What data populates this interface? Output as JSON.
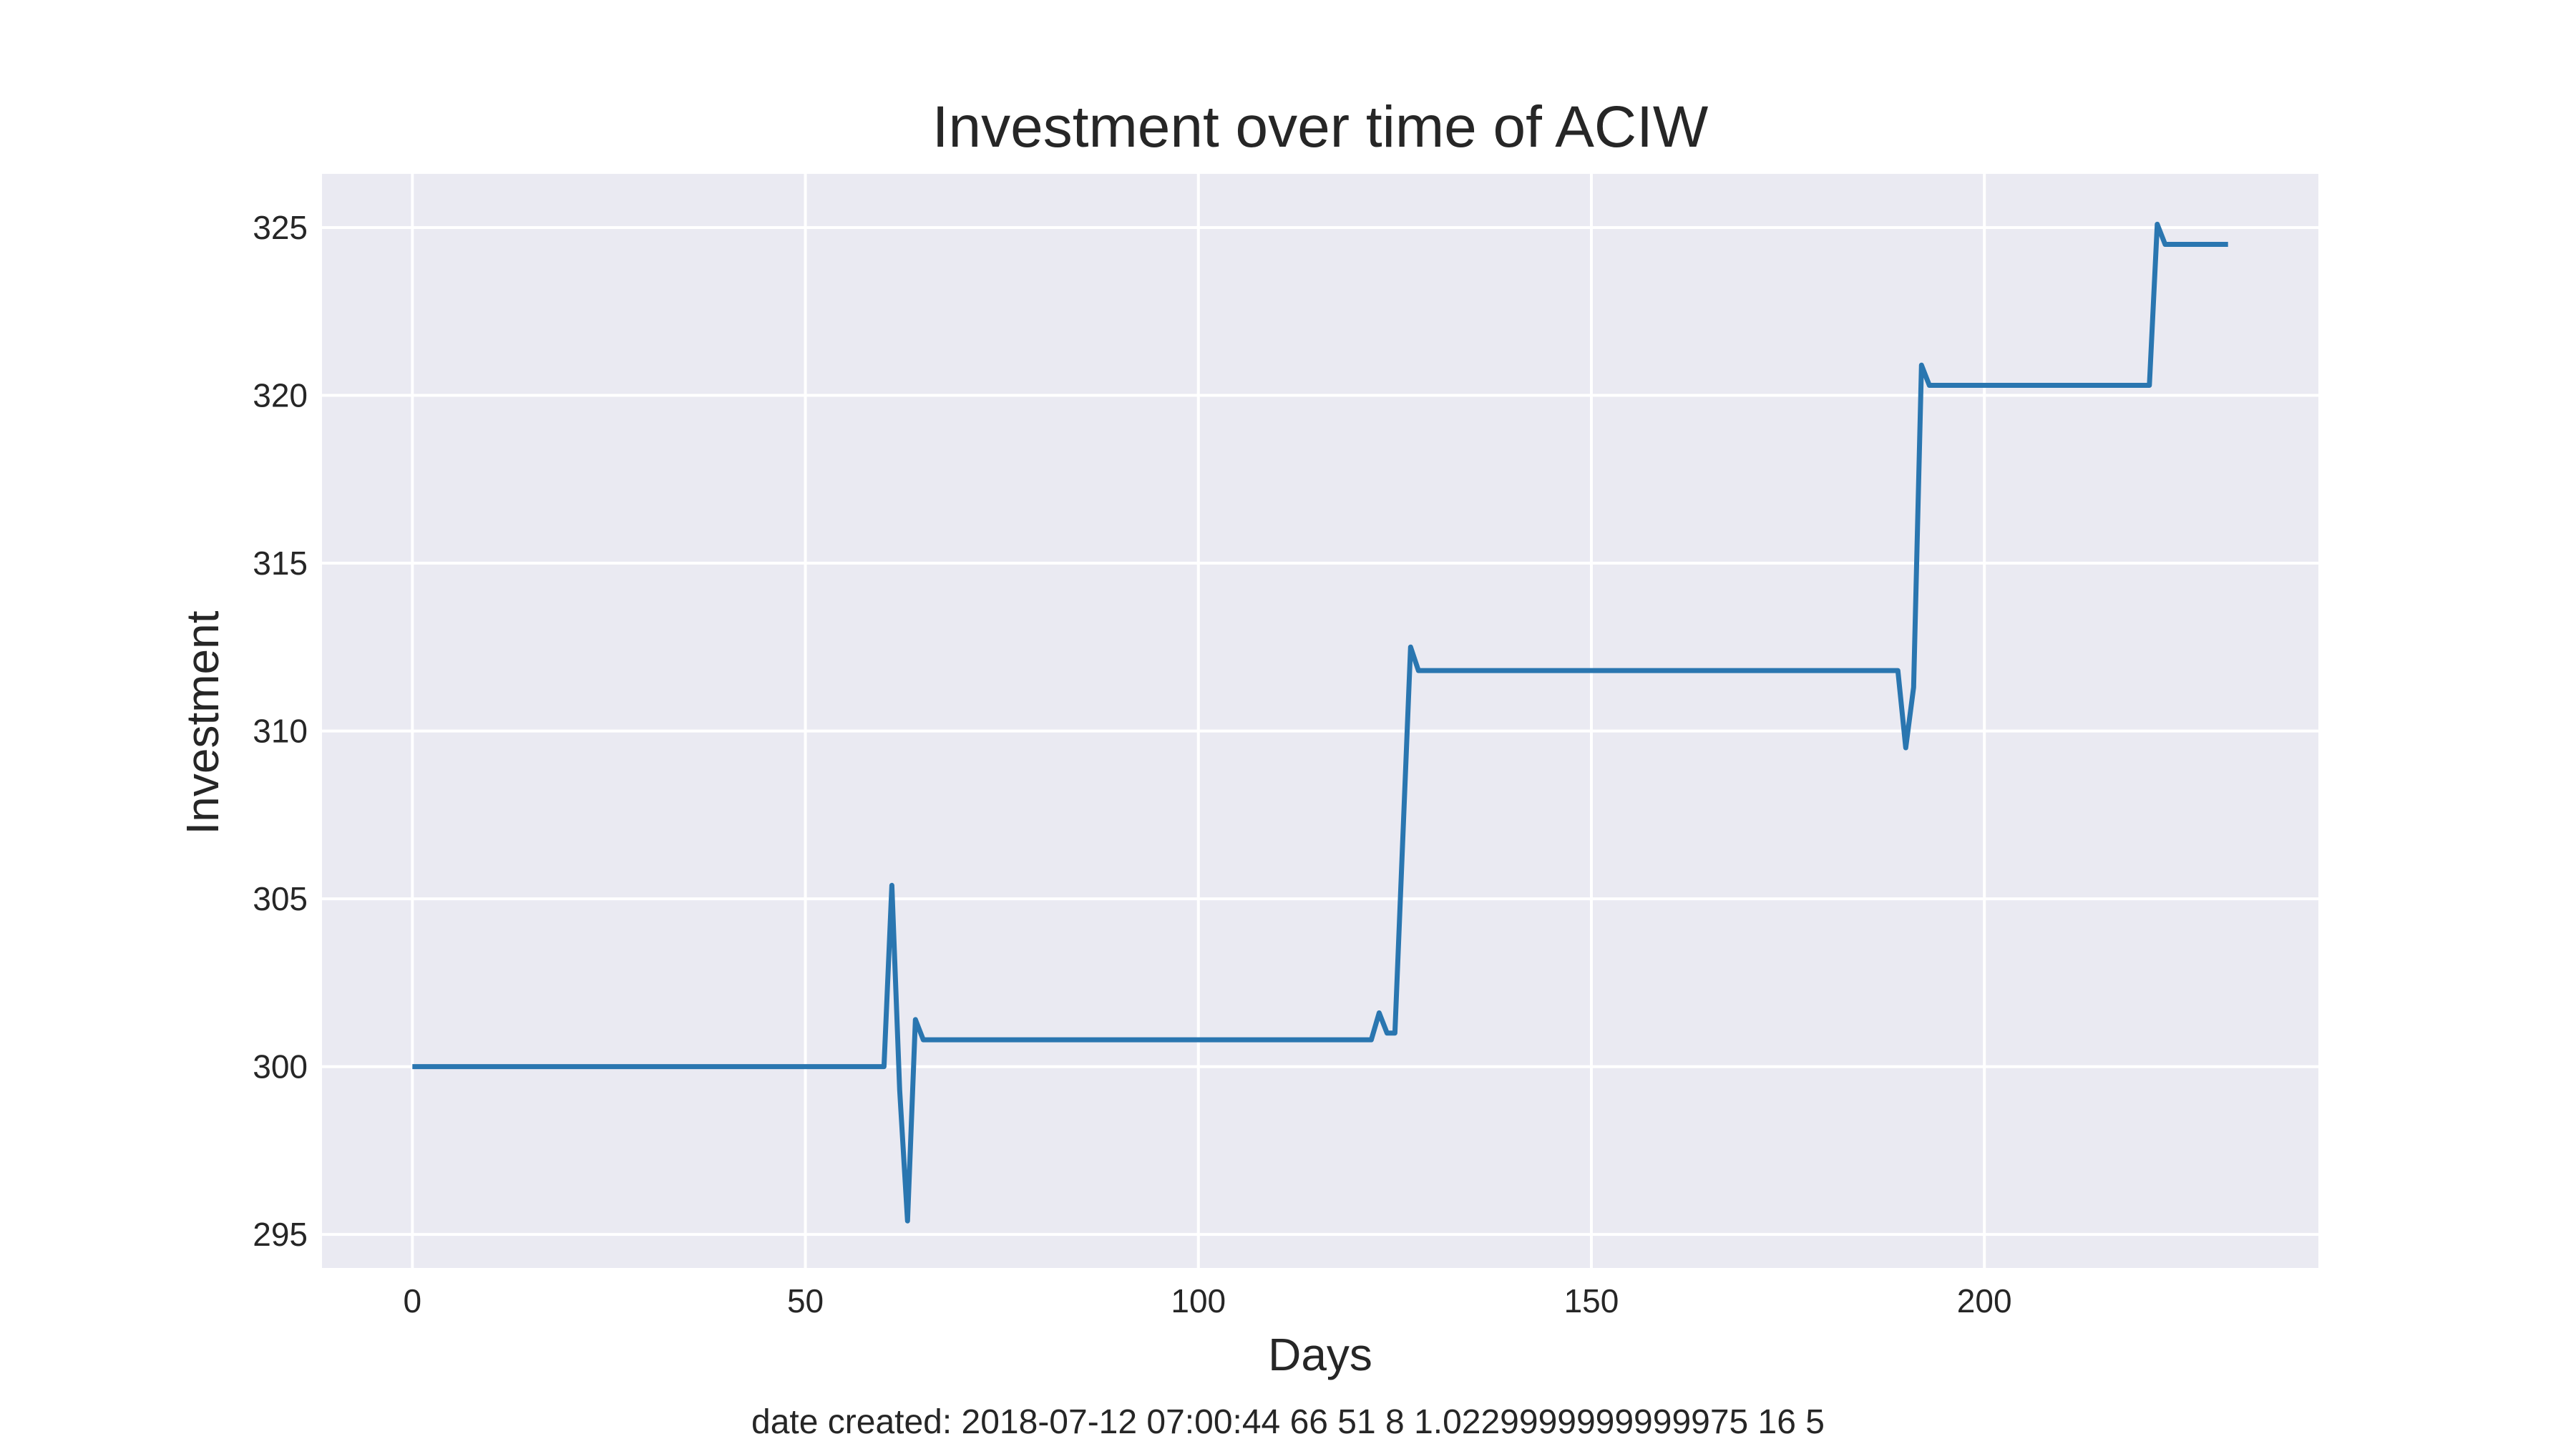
{
  "chart_data": {
    "type": "line",
    "title": "Investment over time of ACIW",
    "xlabel": "Days",
    "ylabel": "Investment",
    "caption": "date created: 2018-07-12 07:00:44 66 51 8 1.0229999999999975 16 5",
    "xlim": [
      -11.5,
      242.5
    ],
    "ylim": [
      294.0,
      326.6
    ],
    "x_ticks": [
      0,
      50,
      100,
      150,
      200
    ],
    "y_ticks": [
      295,
      300,
      305,
      310,
      315,
      320,
      325
    ],
    "grid": true,
    "legend": "none",
    "colors": {
      "plot_background": "#eaeaf2",
      "grid": "#ffffff",
      "line": "#2a76b0",
      "text": "#262626"
    },
    "series": [
      {
        "points": [
          [
            0,
            300.0
          ],
          [
            60,
            300.0
          ],
          [
            61,
            305.4
          ],
          [
            62,
            299.3
          ],
          [
            63,
            295.4
          ],
          [
            64,
            301.4
          ],
          [
            65,
            300.8
          ],
          [
            122,
            300.8
          ],
          [
            123,
            301.6
          ],
          [
            124,
            301.0
          ],
          [
            125,
            301.0
          ],
          [
            127,
            312.5
          ],
          [
            128,
            311.8
          ],
          [
            189,
            311.8
          ],
          [
            190,
            309.5
          ],
          [
            191,
            311.3
          ],
          [
            192,
            320.9
          ],
          [
            193,
            320.3
          ],
          [
            221,
            320.3
          ],
          [
            222,
            325.1
          ],
          [
            223,
            324.5
          ],
          [
            231,
            324.5
          ]
        ]
      }
    ]
  }
}
